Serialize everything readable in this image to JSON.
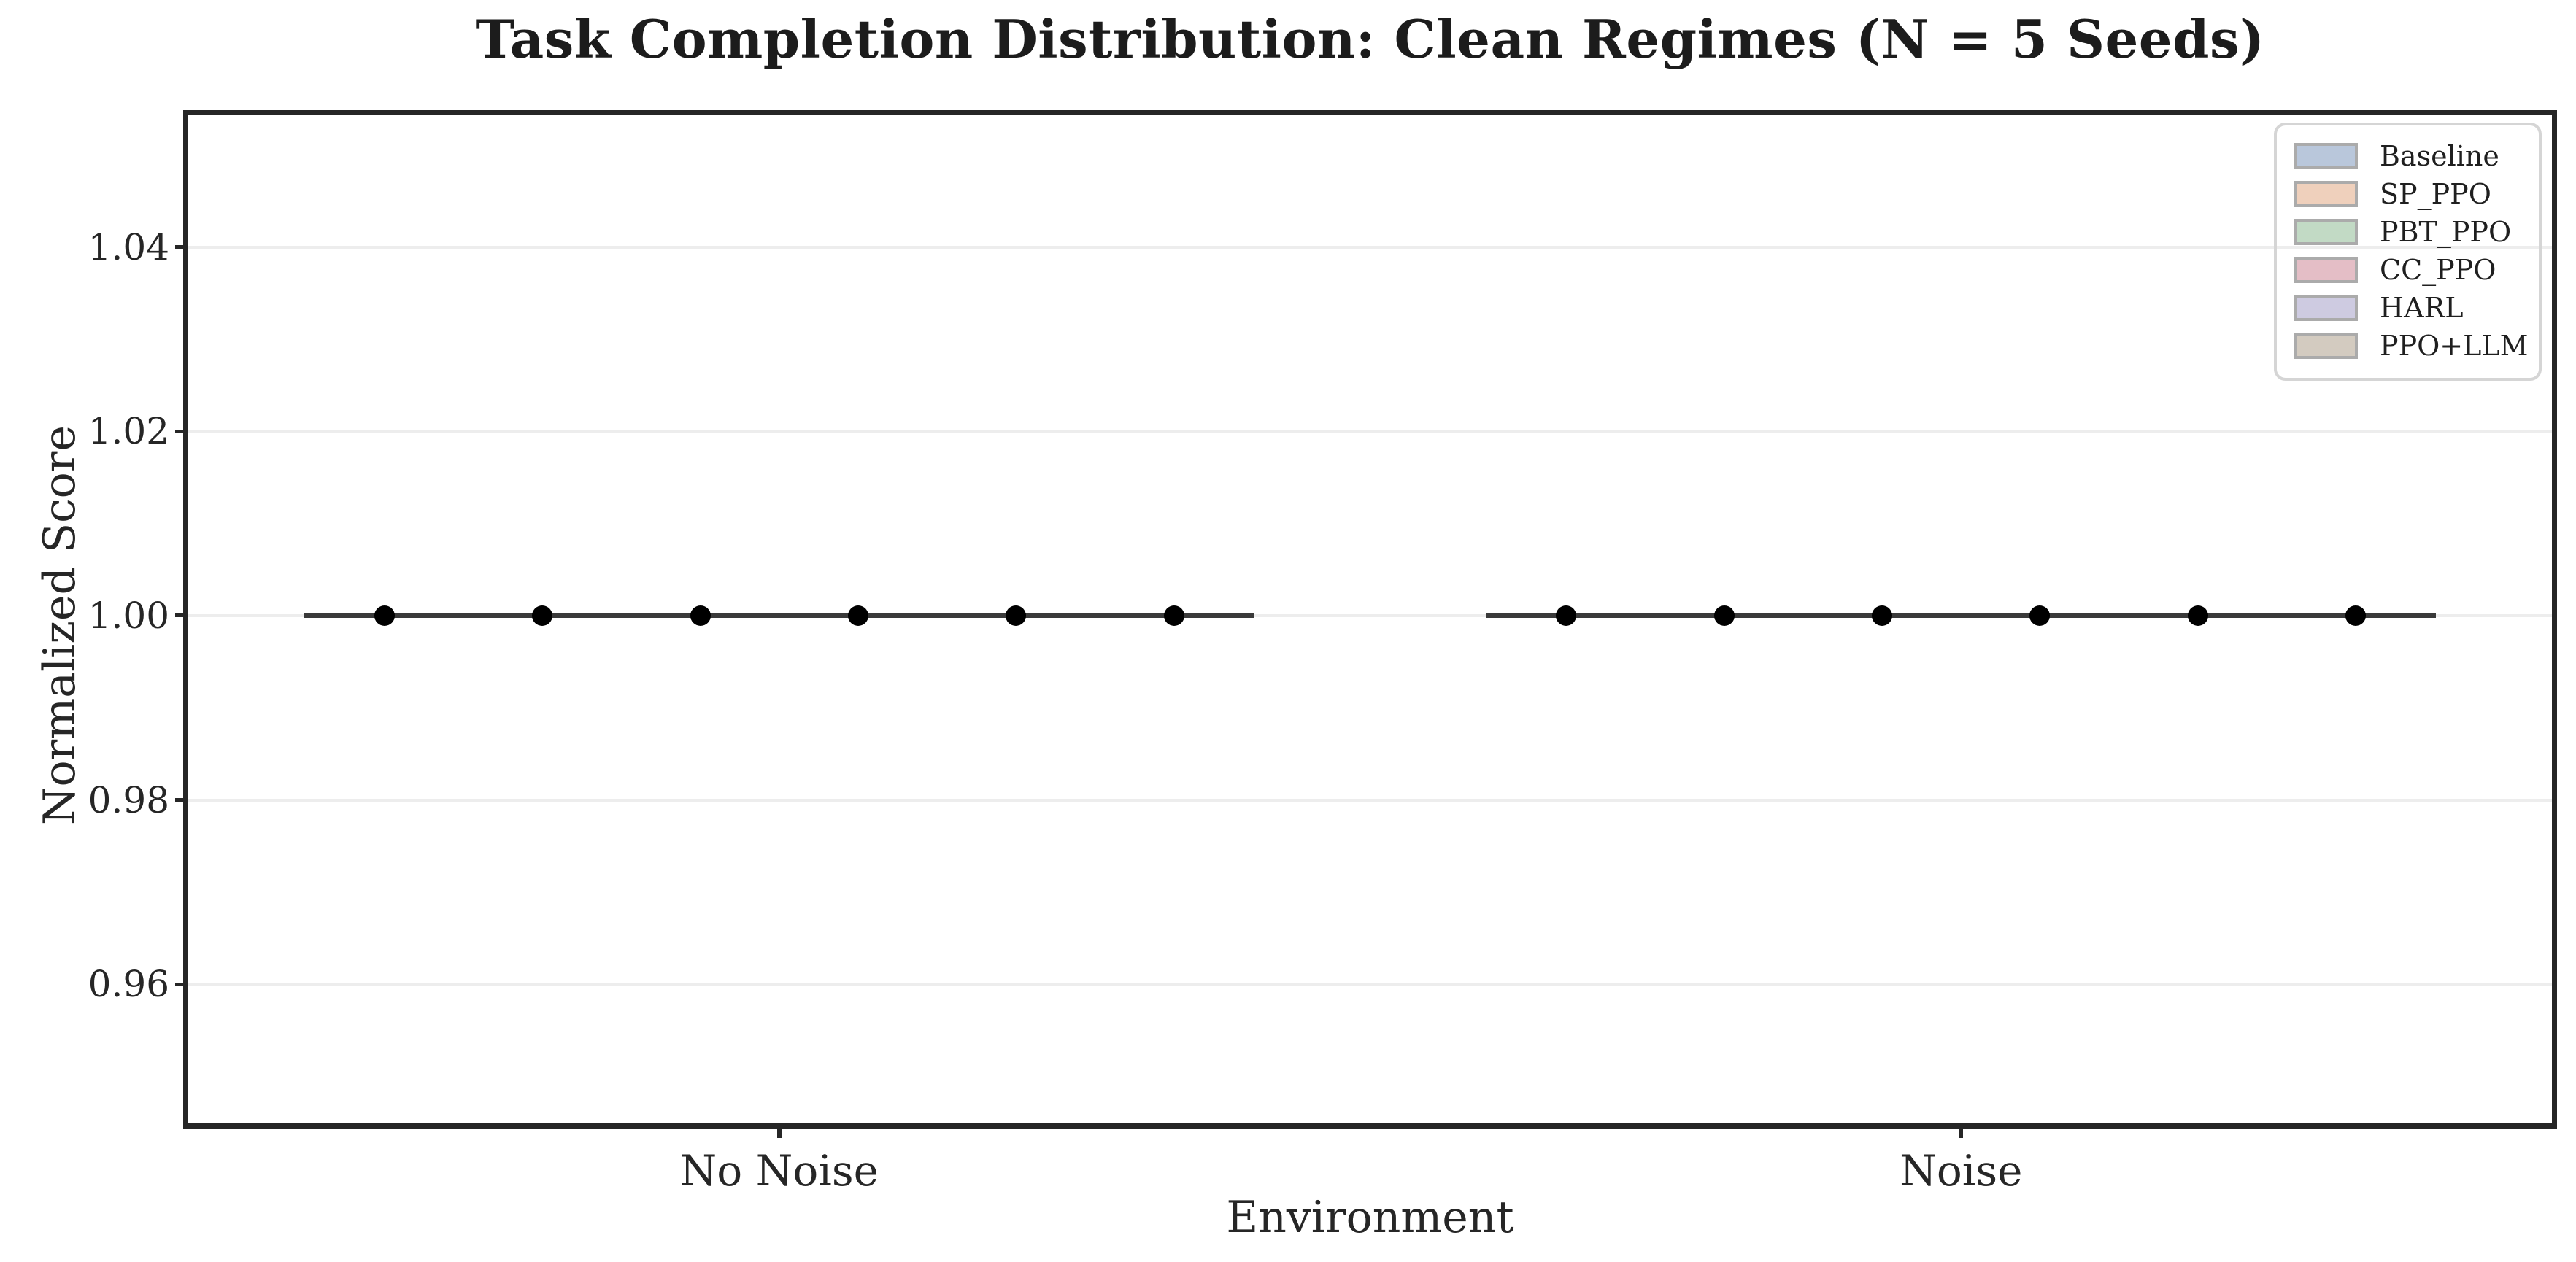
{
  "figure": {
    "title": "Task Completion Distribution: Clean Regimes (N = 5 Seeds)",
    "xlabel": "Environment",
    "ylabel": "Normalized Score"
  },
  "chart_data": {
    "type": "bar",
    "subtype": "grouped-boxplot-degenerate",
    "title": "Task Completion Distribution: Clean Regimes (N = 5 Seeds)",
    "xlabel": "Environment",
    "ylabel": "Normalized Score",
    "categories": [
      "No Noise",
      "Noise"
    ],
    "n_seeds": 5,
    "series": [
      {
        "name": "Baseline",
        "color": "#b9c7db",
        "values_by_category": [
          [
            1.0,
            1.0,
            1.0,
            1.0,
            1.0
          ],
          [
            1.0,
            1.0,
            1.0,
            1.0,
            1.0
          ]
        ],
        "median": 1.0
      },
      {
        "name": "SP_PPO",
        "color": "#efd0bc",
        "values_by_category": [
          [
            1.0,
            1.0,
            1.0,
            1.0,
            1.0
          ],
          [
            1.0,
            1.0,
            1.0,
            1.0,
            1.0
          ]
        ],
        "median": 1.0
      },
      {
        "name": "PBT_PPO",
        "color": "#c2dac5",
        "values_by_category": [
          [
            1.0,
            1.0,
            1.0,
            1.0,
            1.0
          ],
          [
            1.0,
            1.0,
            1.0,
            1.0,
            1.0
          ]
        ],
        "median": 1.0
      },
      {
        "name": "CC_PPO",
        "color": "#e4bec6",
        "values_by_category": [
          [
            1.0,
            1.0,
            1.0,
            1.0,
            1.0
          ],
          [
            1.0,
            1.0,
            1.0,
            1.0,
            1.0
          ]
        ],
        "median": 1.0
      },
      {
        "name": "HARL",
        "color": "#cecbe1",
        "values_by_category": [
          [
            1.0,
            1.0,
            1.0,
            1.0,
            1.0
          ],
          [
            1.0,
            1.0,
            1.0,
            1.0,
            1.0
          ]
        ],
        "median": 1.0
      },
      {
        "name": "PPO+LLM",
        "color": "#d3cbc0",
        "values_by_category": [
          [
            1.0,
            1.0,
            1.0,
            1.0,
            1.0
          ],
          [
            1.0,
            1.0,
            1.0,
            1.0,
            1.0
          ]
        ],
        "median": 1.0
      }
    ],
    "ylim": [
      0.9449,
      1.0543
    ],
    "yticks": [
      0.96,
      0.98,
      1.0,
      1.02,
      1.04
    ],
    "ytick_labels": [
      "0.96",
      "0.98",
      "1.00",
      "1.02",
      "1.04"
    ],
    "grid": "horizontal-only",
    "legend_position": "upper right",
    "note": "Every algorithm scored exactly 1.0 on all 5 seeds in both regimes, so each box collapses to a flat dark line at y = 1.00 with a black median dot per algorithm (6 dots per environment group)."
  },
  "style": {
    "spine_color": "#262626",
    "grid_color": "#ededed",
    "box_line_color": "#3a3a3a",
    "dot_color": "#000000",
    "text_color": "#262626",
    "title_color": "#1c1c1c",
    "legend_border_color": "#d5d5d5",
    "swatch_border_color": "#ababab",
    "background": "#ffffff"
  }
}
